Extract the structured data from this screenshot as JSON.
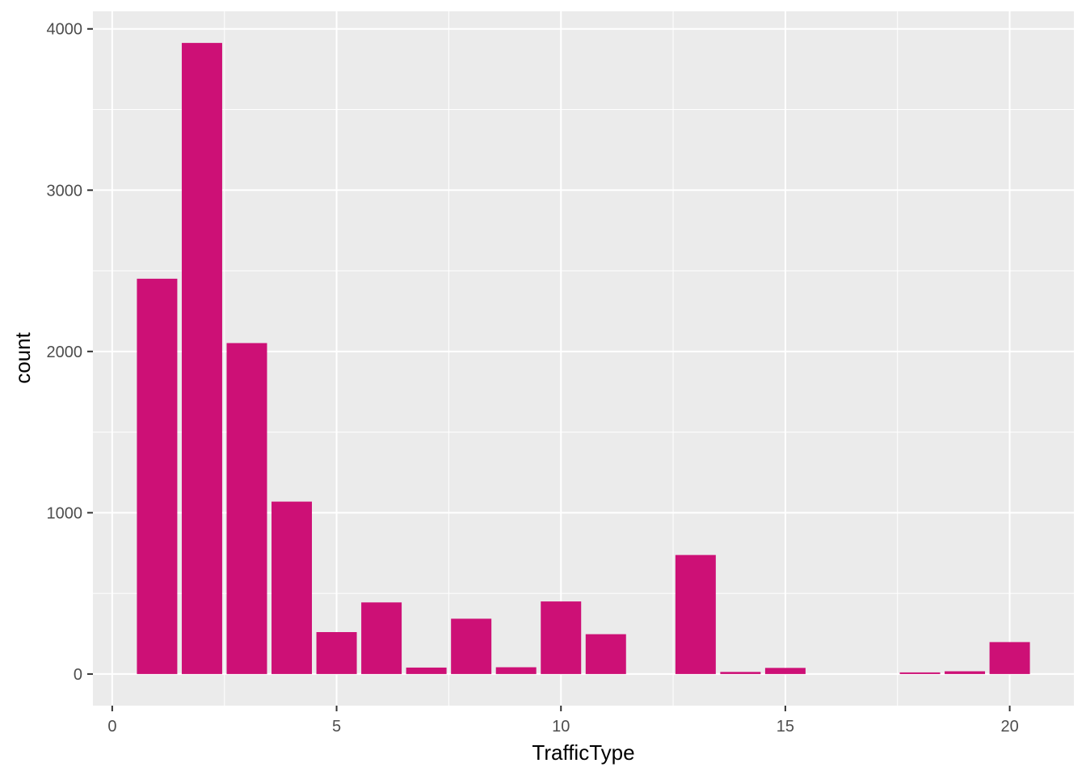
{
  "chart_data": {
    "type": "bar",
    "title": "",
    "xlabel": "TrafficType",
    "ylabel": "count",
    "x": [
      1,
      2,
      3,
      4,
      5,
      6,
      7,
      8,
      9,
      10,
      11,
      13,
      14,
      15,
      18,
      19,
      20
    ],
    "values": [
      2451,
      3913,
      2052,
      1069,
      260,
      444,
      40,
      343,
      42,
      450,
      247,
      738,
      13,
      38,
      10,
      17,
      198
    ],
    "xlim": [
      -0.43,
      21.43
    ],
    "ylim": [
      -196,
      4109
    ],
    "xticks": [
      0,
      5,
      10,
      15,
      20
    ],
    "yticks": [
      0,
      1000,
      2000,
      3000,
      4000
    ],
    "xtick_labels": [
      "0",
      "5",
      "10",
      "15",
      "20"
    ],
    "ytick_labels": [
      "0",
      "1000",
      "2000",
      "3000",
      "4000"
    ],
    "grid": true,
    "colors": {
      "bar": "#CD1076",
      "panel": "#EBEBEB",
      "grid": "#FFFFFF",
      "tick_text": "#4D4D4D",
      "axis_title": "#000000"
    }
  }
}
